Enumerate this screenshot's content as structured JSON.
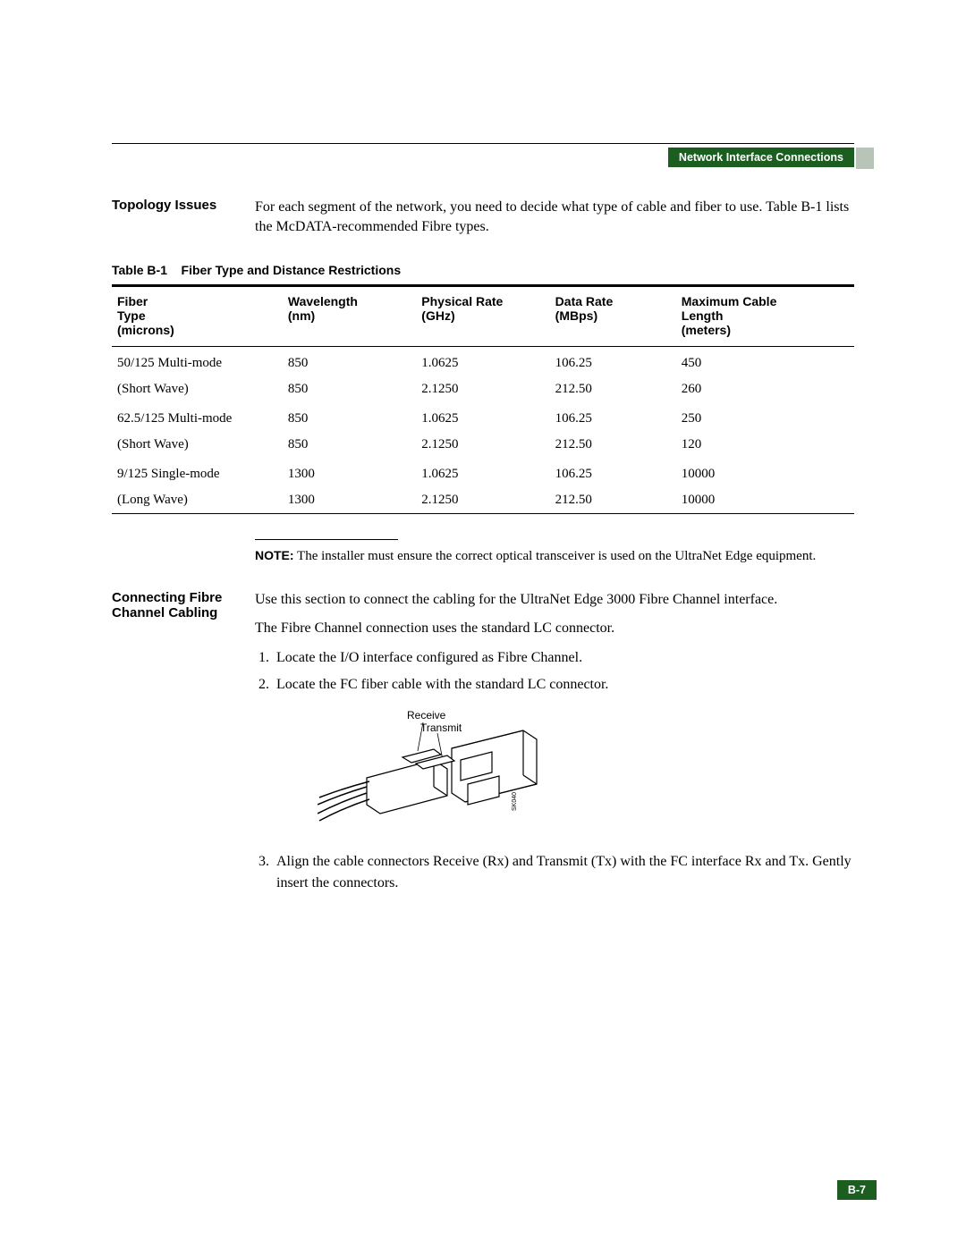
{
  "header": {
    "running_title": "Network Interface Connections",
    "page_number": "B-7"
  },
  "sections": {
    "topology": {
      "heading": "Topology Issues",
      "body": "For each segment of the network, you need to decide what type of cable and fiber to use. Table B-1 lists the McDATA-recommended Fibre types."
    },
    "connecting": {
      "heading": "Connecting Fibre Channel Cabling",
      "intro": "Use this section to connect the cabling for the UltraNet Edge 3000 Fibre Channel interface.",
      "line2": "The Fibre Channel connection uses the standard LC connector.",
      "steps": [
        "Locate the I/O interface configured as Fibre Channel.",
        "Locate the FC fiber cable with the standard LC connector.",
        "Align the cable connectors Receive (Rx) and Transmit (Tx) with the FC interface Rx and Tx. Gently insert the connectors."
      ]
    }
  },
  "table": {
    "caption_label": "Table B-1",
    "caption_title": "Fiber Type and Distance Restrictions",
    "columns": [
      "Fiber Type (microns)",
      "Wavelength (nm)",
      "Physical Rate (GHz)",
      "Data Rate (MBps)",
      "Maximum Cable Length (meters)"
    ],
    "col_headers": {
      "c0a": "Fiber",
      "c0b": "Type",
      "c0c": "(microns)",
      "c1a": "Wavelength",
      "c1b": "(nm)",
      "c2a": "Physical Rate",
      "c2b": "(GHz)",
      "c3a": "Data Rate",
      "c3b": "(MBps)",
      "c4a": "Maximum Cable",
      "c4b": "Length",
      "c4c": "(meters)"
    },
    "groups": [
      {
        "fiber_l1": "50/125 Multi-mode",
        "fiber_l2": "(Short Wave)",
        "rows": [
          {
            "wl": "850",
            "pr": "1.0625",
            "dr": "106.25",
            "len": "450"
          },
          {
            "wl": "850",
            "pr": "2.1250",
            "dr": "212.50",
            "len": "260"
          }
        ]
      },
      {
        "fiber_l1": "62.5/125 Multi-mode",
        "fiber_l2": "(Short Wave)",
        "rows": [
          {
            "wl": "850",
            "pr": "1.0625",
            "dr": "106.25",
            "len": "250"
          },
          {
            "wl": "850",
            "pr": "2.1250",
            "dr": "212.50",
            "len": "120"
          }
        ]
      },
      {
        "fiber_l1": "9/125 Single-mode",
        "fiber_l2": "(Long Wave)",
        "rows": [
          {
            "wl": "1300",
            "pr": "1.0625",
            "dr": "106.25",
            "len": "10000"
          },
          {
            "wl": "1300",
            "pr": "2.1250",
            "dr": "212.50",
            "len": "10000"
          }
        ]
      }
    ]
  },
  "note": {
    "label": "NOTE:",
    "text": " The installer must ensure the correct optical transceiver is used on the UltraNet Edge equipment."
  },
  "figure": {
    "receive": "Receive",
    "transmit": "Transmit",
    "code": "SK040"
  },
  "colors": {
    "header_bg": "#1b5e20",
    "side_tab": "#b8c4b8",
    "text": "#000000",
    "bg": "#ffffff"
  }
}
